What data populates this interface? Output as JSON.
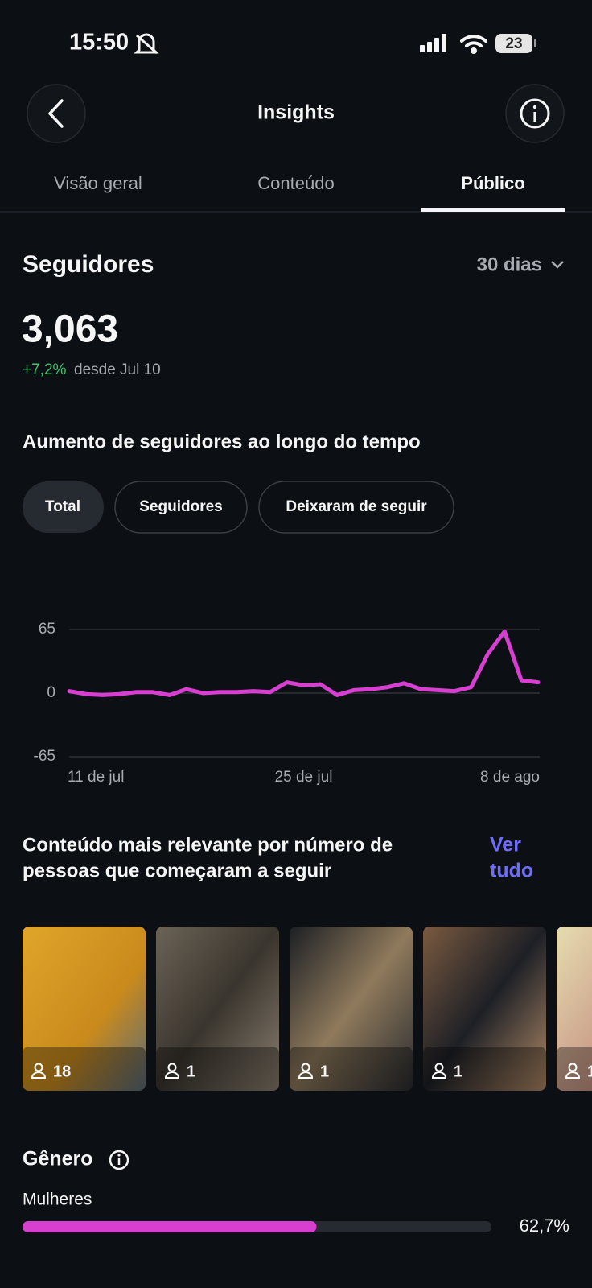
{
  "status_bar": {
    "time": "15:50",
    "battery": "23"
  },
  "header": {
    "title": "Insights"
  },
  "tabs": [
    "Visão geral",
    "Conteúdo",
    "Público"
  ],
  "followers": {
    "title": "Seguidores",
    "period": "30 dias",
    "count": "3,063",
    "change": "+7,2%",
    "since": "desde Jul 10"
  },
  "growth": {
    "title": "Aumento de seguidores ao longo do tempo",
    "filters": [
      "Total",
      "Seguidores",
      "Deixaram de seguir"
    ]
  },
  "chart_data": {
    "type": "line",
    "categories": [
      "11 de jul",
      null,
      null,
      null,
      null,
      null,
      null,
      null,
      null,
      null,
      null,
      null,
      null,
      null,
      "25 de jul",
      null,
      null,
      null,
      null,
      null,
      null,
      null,
      null,
      null,
      null,
      null,
      null,
      null,
      "8 de ago"
    ],
    "series": [
      {
        "name": "Total",
        "color": "#d63fcf",
        "values": [
          2,
          -1,
          -2,
          -1,
          1,
          1,
          -2,
          4,
          0,
          1,
          1,
          2,
          1,
          11,
          8,
          9,
          -2,
          3,
          4,
          6,
          10,
          4,
          3,
          2,
          6,
          40,
          63,
          13,
          11
        ]
      }
    ],
    "ylim": [
      -65,
      65
    ],
    "yticks": [
      -65,
      0,
      65
    ],
    "grid": true
  },
  "top_content": {
    "title": [
      "Conteúdo mais relevante por número de",
      "pessoas que começaram a seguir"
    ],
    "link": [
      "Ver",
      "tudo"
    ],
    "items": [
      "18",
      "1",
      "1",
      "1",
      "1"
    ]
  },
  "gender": {
    "title": "Gênero",
    "items": [
      {
        "label": "Mulheres",
        "value": 62.7,
        "value_label": "62,7%"
      }
    ]
  }
}
